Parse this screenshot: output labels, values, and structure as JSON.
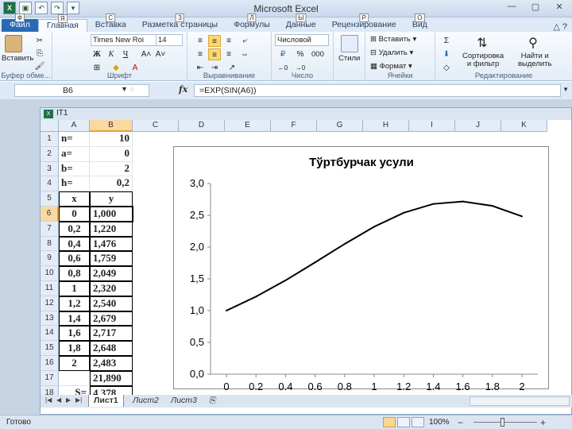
{
  "app": {
    "title": "Microsoft Excel"
  },
  "window_controls": {
    "minimize": "—",
    "restore": "▢",
    "close": "✕"
  },
  "tabs": [
    {
      "label": "Файл",
      "key": "Ф"
    },
    {
      "label": "Главная",
      "key": "Я"
    },
    {
      "label": "Вставка",
      "key": "С"
    },
    {
      "label": "Разметка страницы",
      "key": "З"
    },
    {
      "label": "Формулы",
      "key": "Л"
    },
    {
      "label": "Данные",
      "key": "Ы"
    },
    {
      "label": "Рецензирование",
      "key": "Р"
    },
    {
      "label": "Вид",
      "key": "О"
    }
  ],
  "ribbon": {
    "paste": "Вставить",
    "clipboard_group": "Буфер обме...",
    "font_name": "Times New Roi",
    "font_size": "14",
    "font_group": "Шрифт",
    "bold": "Ж",
    "italic": "К",
    "underline": "Ч",
    "alignment_group": "Выравнивание",
    "number_format": "Числовой",
    "percent": "%",
    "thousands": "000",
    "number_group": "Число",
    "styles": "Стили",
    "insert_cells": "Вставить",
    "delete_cells": "Удалить",
    "format_cells": "Формат",
    "cells_group": "Ячейки",
    "sort_filter": "Сортировка\nи фильтр",
    "find_select": "Найти и\nвыделить",
    "editing_group": "Редактирование"
  },
  "formula_bar": {
    "name_box": "B6",
    "fx": "fx",
    "formula": "=EXP(SIN(A6))"
  },
  "workbook": {
    "title": "IT1"
  },
  "columns": [
    "A",
    "B",
    "C",
    "D",
    "E",
    "F",
    "G",
    "H",
    "I",
    "J",
    "K"
  ],
  "rows": [
    {
      "n": "1",
      "a": "n=",
      "b": "10"
    },
    {
      "n": "2",
      "a": "a=",
      "b": "0"
    },
    {
      "n": "3",
      "a": "b=",
      "b": "2"
    },
    {
      "n": "4",
      "a": "h=",
      "b": "0,2"
    },
    {
      "n": "5",
      "a": "x",
      "b": "y"
    },
    {
      "n": "6",
      "a": "0",
      "b": "1,000"
    },
    {
      "n": "7",
      "a": "0,2",
      "b": "1,220"
    },
    {
      "n": "8",
      "a": "0,4",
      "b": "1,476"
    },
    {
      "n": "9",
      "a": "0,6",
      "b": "1,759"
    },
    {
      "n": "10",
      "a": "0,8",
      "b": "2,049"
    },
    {
      "n": "11",
      "a": "1",
      "b": "2,320"
    },
    {
      "n": "12",
      "a": "1,2",
      "b": "2,540"
    },
    {
      "n": "13",
      "a": "1,4",
      "b": "2,679"
    },
    {
      "n": "14",
      "a": "1,6",
      "b": "2,717"
    },
    {
      "n": "15",
      "a": "1,8",
      "b": "2,648"
    },
    {
      "n": "16",
      "a": "2",
      "b": "2,483"
    },
    {
      "n": "17",
      "a": "",
      "b": "21,890"
    },
    {
      "n": "18",
      "a": "S=",
      "b": "4,378"
    }
  ],
  "chart_data": {
    "type": "line",
    "title": "Тўртбурчак усули",
    "categories": [
      "0",
      "0,2",
      "0,4",
      "0,6",
      "0,8",
      "1",
      "1,2",
      "1,4",
      "1,6",
      "1,8",
      "2"
    ],
    "series": [
      {
        "values": [
          1.0,
          1.22,
          1.476,
          1.759,
          2.049,
          2.32,
          2.54,
          2.679,
          2.717,
          2.648,
          2.483
        ],
        "color": "#000000"
      }
    ],
    "ylim": [
      0,
      3.0
    ],
    "yticks": [
      "0,0",
      "0,5",
      "1,0",
      "1,5",
      "2,0",
      "2,5",
      "3,0"
    ],
    "grid": false,
    "legend": "none"
  },
  "sheets": [
    "Лист1",
    "Лист2",
    "Лист3"
  ],
  "status": {
    "text": "Готово",
    "zoom": "100%",
    "minus": "−",
    "plus": "+"
  }
}
